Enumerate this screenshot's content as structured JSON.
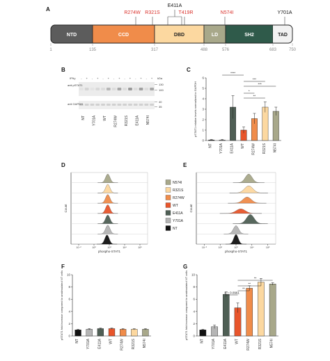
{
  "panel_labels": {
    "a": "A",
    "b": "B",
    "c": "C",
    "d": "D",
    "e": "E",
    "f": "F",
    "g": "G"
  },
  "domain_map": {
    "domains": [
      {
        "label": "NTD",
        "color": "#5c5c5c",
        "text_color": "#ffffff"
      },
      {
        "label": "CCD",
        "color": "#f08c4a",
        "text_color": "#ffffff"
      },
      {
        "label": "DBD",
        "color": "#fcd8a0",
        "text_color": "#222222"
      },
      {
        "label": "LD",
        "color": "#a8a88a",
        "text_color": "#ffffff"
      },
      {
        "label": "SH2",
        "color": "#2f5a4a",
        "text_color": "#ffffff"
      },
      {
        "label": "TAD",
        "color": "#f2f2f2",
        "text_color": "#222222"
      }
    ],
    "positions": [
      "1",
      "135",
      "317",
      "488",
      "576",
      "683",
      "750"
    ],
    "mutations": [
      {
        "label": "R274W",
        "color": "#d9302a"
      },
      {
        "label": "R321S",
        "color": "#d9302a"
      },
      {
        "label": "E411A",
        "color": "#111111"
      },
      {
        "label": "T419R",
        "color": "#d9302a"
      },
      {
        "label": "N574I",
        "color": "#d9302a"
      },
      {
        "label": "Y701A",
        "color": "#111111"
      }
    ]
  },
  "western_blot": {
    "ifn_label": "IFNγ",
    "ifn_states": [
      "-",
      "+",
      "-",
      "+",
      "-",
      "+",
      "-",
      "+",
      "-",
      "+",
      "-",
      "+",
      "-",
      "+"
    ],
    "row_labels": [
      "anti pSTAT1",
      "anti GAPDH"
    ],
    "kda_label": "kDa",
    "markers": [
      "130",
      "100",
      "40",
      "35"
    ],
    "lanes": [
      "NT",
      "Y701A",
      "WT",
      "R274W",
      "R321S",
      "E411A",
      "N574I"
    ]
  },
  "flow": {
    "x_label": "phospho-STAT1",
    "y_label": "Count",
    "legend": [
      {
        "label": "N574I",
        "color": "#a8a88a"
      },
      {
        "label": "R321S",
        "color": "#fcd8a0"
      },
      {
        "label": "R274W",
        "color": "#f08c4a"
      },
      {
        "label": "WT",
        "color": "#e8552b"
      },
      {
        "label": "E411A",
        "color": "#4f5f55"
      },
      {
        "label": "Y701A",
        "color": "#b5b5b5"
      },
      {
        "label": "NT",
        "color": "#111111"
      }
    ],
    "x_ticks": [
      "10⁻²",
      "10²",
      "10³",
      "10⁴",
      "10⁵"
    ]
  },
  "chart_data": [
    {
      "panel": "C",
      "type": "bar",
      "ylabel": "pSTAT1 relative levels normalized to GAPDH",
      "ylim": [
        0,
        6
      ],
      "y_ticks": [
        "0",
        "1",
        "2",
        "3",
        "4",
        "5",
        "6"
      ],
      "categories": [
        "NT",
        "Y701A",
        "E411A",
        "WT",
        "R274W",
        "R321S",
        "N574I"
      ],
      "values": [
        0.05,
        0.05,
        3.2,
        1.0,
        2.1,
        3.2,
        2.8
      ],
      "errors": [
        0.05,
        0.05,
        1.1,
        0.3,
        0.5,
        0.5,
        0.4
      ],
      "colors": [
        "#111111",
        "#b5b5b5",
        "#4f5f55",
        "#e8552b",
        "#f08c4a",
        "#fcd8a0",
        "#a8a88a"
      ],
      "significance": [
        {
          "from": "Y701A",
          "to": "WT",
          "label": "****"
        },
        {
          "from": "WT",
          "to": "R321S",
          "label": "***"
        },
        {
          "from": "WT",
          "to": "N574I",
          "label": "***"
        },
        {
          "from": "WT",
          "to": "R274W",
          "label": "*"
        },
        {
          "from": "WT",
          "to": "R321S",
          "label": "**"
        }
      ]
    },
    {
      "panel": "F",
      "type": "bar",
      "ylabel": "pSTAT1 fold increase compared to unstimulated NT cells",
      "ylim": [
        0,
        10
      ],
      "y_ticks": [
        "0",
        "2",
        "4",
        "6",
        "8",
        "10"
      ],
      "categories": [
        "NT",
        "Y701A",
        "E411A",
        "WT",
        "R274W",
        "R321S",
        "N574I"
      ],
      "values": [
        1.0,
        1.1,
        1.2,
        1.2,
        1.1,
        1.1,
        1.1
      ],
      "errors": [
        0.1,
        0.1,
        0.1,
        0.1,
        0.1,
        0.1,
        0.1
      ],
      "colors": [
        "#111111",
        "#b5b5b5",
        "#4f5f55",
        "#e8552b",
        "#f08c4a",
        "#fcd8a0",
        "#a8a88a"
      ],
      "significance": []
    },
    {
      "panel": "G",
      "type": "bar",
      "ylabel": "pSTAT1 fold increase compared to unstimulated NT cells",
      "ylim": [
        0,
        10
      ],
      "y_ticks": [
        "0",
        "2",
        "4",
        "6",
        "8",
        "10"
      ],
      "categories": [
        "NT",
        "Y701A",
        "E411A",
        "WT",
        "R274W",
        "R321S",
        "N574I"
      ],
      "values": [
        1.0,
        1.5,
        6.8,
        4.6,
        7.8,
        8.8,
        8.5
      ],
      "errors": [
        0.1,
        0.3,
        0.4,
        0.8,
        0.4,
        0.6,
        0.2
      ],
      "colors": [
        "#111111",
        "#b5b5b5",
        "#4f5f55",
        "#e8552b",
        "#f08c4a",
        "#fcd8a0",
        "#a8a88a"
      ],
      "significance": [
        {
          "from": "E411A",
          "to": "WT",
          "label": "p = 0.0961"
        },
        {
          "from": "WT",
          "to": "R274W",
          "label": "**"
        },
        {
          "from": "WT",
          "to": "R321S",
          "label": "**"
        },
        {
          "from": "WT",
          "to": "N574I",
          "label": "**"
        }
      ]
    }
  ]
}
